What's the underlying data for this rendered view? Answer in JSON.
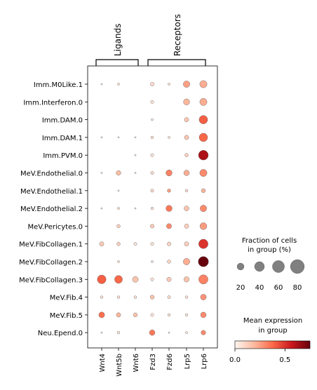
{
  "chart_data": {
    "type": "dotplot",
    "rows": [
      "Imm.M0Like.1",
      "Imm.Interferon.0",
      "Imm.DAM.0",
      "Imm.DAM.1",
      "Imm.PVM.0",
      "MeV.Endothelial.0",
      "MeV.Endothelial.1",
      "MeV.Endothelial.2",
      "MeV.Pericytes.0",
      "MeV.FibCollagen.1",
      "MeV.FibCollagen.2",
      "MeV.FibCollagen.3",
      "MeV.Fib.4",
      "MeV.Fib.5",
      "Neu.Epend.0"
    ],
    "columns": [
      "Wnt4",
      "Wnt5b",
      "Wnt6",
      "Fzd3",
      "Fzd6",
      "Lrp5",
      "Lrp6"
    ],
    "groups": [
      {
        "label": "Ligands",
        "columns": [
          "Wnt4",
          "Wnt5b",
          "Wnt6"
        ]
      },
      {
        "label": "Receptors",
        "columns": [
          "Fzd3",
          "Fzd6",
          "Lrp5",
          "Lrp6"
        ]
      }
    ],
    "fraction_pct": [
      [
        1,
        2,
        0,
        6,
        2,
        18,
        22
      ],
      [
        0,
        0,
        0,
        4,
        0,
        16,
        22
      ],
      [
        0,
        0,
        0,
        2,
        0,
        8,
        30
      ],
      [
        1,
        1,
        1,
        3,
        2,
        8,
        30
      ],
      [
        0,
        0,
        1,
        4,
        0,
        5,
        40
      ],
      [
        1,
        9,
        1,
        4,
        16,
        13,
        22
      ],
      [
        0,
        1,
        0,
        4,
        5,
        3,
        7
      ],
      [
        1,
        2,
        1,
        3,
        16,
        10,
        18
      ],
      [
        0,
        5,
        0,
        6,
        11,
        8,
        20
      ],
      [
        8,
        5,
        4,
        4,
        6,
        8,
        37
      ],
      [
        0,
        2,
        0,
        2,
        5,
        18,
        44
      ],
      [
        32,
        26,
        14,
        4,
        8,
        12,
        36
      ],
      [
        3,
        3,
        3,
        7,
        4,
        3,
        14
      ],
      [
        14,
        8,
        7,
        4,
        3,
        3,
        13
      ],
      [
        1,
        3,
        0,
        13,
        1,
        2,
        9
      ]
    ],
    "mean_expr": [
      [
        0.05,
        0.05,
        0.0,
        0.08,
        0.05,
        0.25,
        0.22
      ],
      [
        0.0,
        0.0,
        0.0,
        0.06,
        0.0,
        0.2,
        0.22
      ],
      [
        0.0,
        0.0,
        0.0,
        0.05,
        0.0,
        0.15,
        0.4
      ],
      [
        0.05,
        0.05,
        0.05,
        0.06,
        0.05,
        0.15,
        0.38
      ],
      [
        0.0,
        0.0,
        0.05,
        0.06,
        0.0,
        0.12,
        0.62
      ],
      [
        0.05,
        0.18,
        0.05,
        0.08,
        0.32,
        0.22,
        0.3
      ],
      [
        0.0,
        0.05,
        0.0,
        0.1,
        0.25,
        0.08,
        0.2
      ],
      [
        0.05,
        0.08,
        0.05,
        0.06,
        0.34,
        0.16,
        0.3
      ],
      [
        0.0,
        0.12,
        0.0,
        0.14,
        0.3,
        0.12,
        0.26
      ],
      [
        0.14,
        0.12,
        0.06,
        0.06,
        0.1,
        0.12,
        0.5
      ],
      [
        0.0,
        0.06,
        0.0,
        0.05,
        0.1,
        0.22,
        0.75
      ],
      [
        0.4,
        0.38,
        0.16,
        0.06,
        0.14,
        0.16,
        0.32
      ],
      [
        0.06,
        0.06,
        0.06,
        0.16,
        0.08,
        0.06,
        0.28
      ],
      [
        0.36,
        0.2,
        0.16,
        0.06,
        0.05,
        0.05,
        0.3
      ],
      [
        0.05,
        0.05,
        0.0,
        0.34,
        0.05,
        0.05,
        0.3
      ]
    ],
    "size_legend": {
      "title_line1": "Fraction of cells",
      "title_line2": "in group (%)",
      "values": [
        20,
        40,
        60,
        80
      ],
      "labels": [
        "20",
        "40",
        "60",
        "80"
      ]
    },
    "color_legend": {
      "title_line1": "Mean expression",
      "title_line2": "in group",
      "range": [
        0,
        0.75
      ],
      "tick_values": [
        0,
        0.5
      ],
      "tick_labels": [
        "0.0",
        "0.5"
      ],
      "colormap": "Reds"
    },
    "colors": {
      "low": "#fff5f0",
      "mid1": "#fcbba1",
      "mid2": "#fb6a4a",
      "mid3": "#cb181d",
      "high": "#67000d",
      "size_legend_dot": "#808080",
      "edge": "#595959"
    }
  }
}
